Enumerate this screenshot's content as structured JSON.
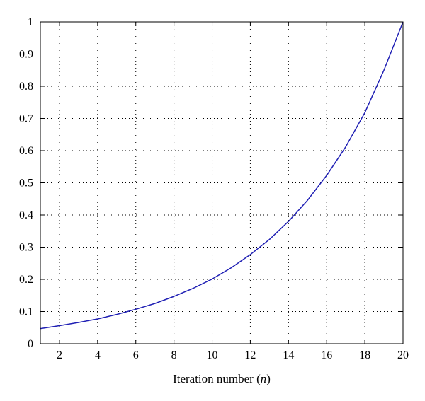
{
  "chart_data": {
    "type": "line",
    "title": "",
    "xlabel": "Iteration number (n)",
    "xlabel_parts": {
      "prefix": "Iteration number (",
      "var": "n",
      "suffix": ")"
    },
    "ylabel": "",
    "xlim": [
      1,
      20
    ],
    "ylim": [
      0,
      1
    ],
    "x_ticks": [
      2,
      4,
      6,
      8,
      10,
      12,
      14,
      16,
      18,
      20
    ],
    "y_ticks": [
      0,
      0.1,
      0.2,
      0.3,
      0.4,
      0.5,
      0.6,
      0.7,
      0.8,
      0.9,
      1
    ],
    "x_tick_labels": [
      "2",
      "4",
      "6",
      "8",
      "10",
      "12",
      "14",
      "16",
      "18",
      "20"
    ],
    "y_tick_labels": [
      "0",
      "0.1",
      "0.2",
      "0.3",
      "0.4",
      "0.5",
      "0.6",
      "0.7",
      "0.8",
      "0.9",
      "1"
    ],
    "grid": true,
    "grid_style": "dotted",
    "legend": "none",
    "series": [
      {
        "color": "#1f1fb4",
        "x": [
          1,
          2,
          3,
          4,
          5,
          6,
          7,
          8,
          9,
          10,
          11,
          12,
          13,
          14,
          15,
          16,
          17,
          18,
          19,
          20
        ],
        "y": [
          0.047,
          0.056,
          0.066,
          0.077,
          0.091,
          0.107,
          0.125,
          0.147,
          0.172,
          0.201,
          0.236,
          0.277,
          0.324,
          0.38,
          0.446,
          0.523,
          0.612,
          0.718,
          0.85,
          1.0
        ]
      }
    ]
  }
}
